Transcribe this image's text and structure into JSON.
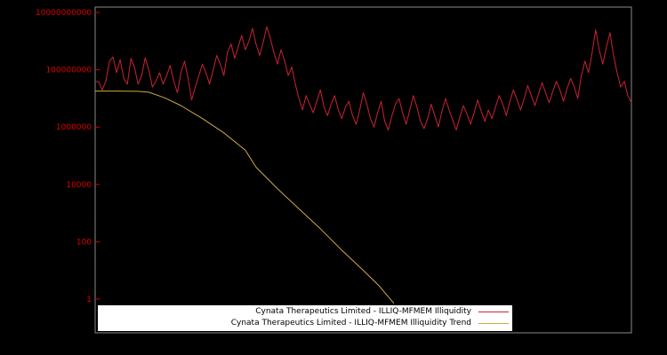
{
  "colors": {
    "background": "#000000",
    "plot_border": "#8a8a8a",
    "axis_label": "#dd0000",
    "legend_background": "#ffffff",
    "legend_text": "#000000"
  },
  "chart_data": {
    "type": "line",
    "title": "",
    "xlabel": "",
    "ylabel": "",
    "y_scale": "log",
    "grid": false,
    "legend_position": "bottom-center",
    "y_tick_labels": [
      "1",
      "100",
      "10000",
      "1000000",
      "100000000",
      "10000000000"
    ],
    "y_tick_values": [
      1,
      100,
      10000,
      1000000,
      100000000,
      10000000000
    ],
    "ylim_log10": [
      -1.18,
      10.19
    ],
    "series": [
      {
        "name": "Cynata Therapeutics Limited - ILLIQ-MFMEM Illiquidity",
        "color": "#cc2233",
        "log10_values": [
          7.6,
          7.58,
          7.3,
          7.62,
          8.3,
          8.45,
          7.9,
          8.35,
          7.7,
          7.5,
          8.4,
          8.1,
          7.5,
          7.8,
          8.42,
          8.0,
          7.4,
          7.6,
          7.9,
          7.5,
          7.8,
          8.15,
          7.6,
          7.2,
          7.9,
          8.3,
          7.7,
          6.95,
          7.4,
          7.8,
          8.2,
          7.9,
          7.5,
          8.0,
          8.5,
          8.2,
          7.8,
          8.6,
          8.9,
          8.4,
          8.8,
          9.2,
          8.7,
          9.0,
          9.45,
          8.9,
          8.5,
          8.95,
          9.5,
          9.1,
          8.6,
          8.2,
          8.7,
          8.3,
          7.8,
          8.1,
          7.5,
          7.0,
          6.6,
          7.1,
          6.8,
          6.5,
          6.9,
          7.3,
          6.7,
          6.4,
          6.8,
          7.1,
          6.6,
          6.3,
          6.7,
          6.9,
          6.4,
          6.1,
          6.6,
          7.2,
          6.8,
          6.3,
          6.0,
          6.5,
          6.9,
          6.2,
          5.9,
          6.4,
          6.8,
          7.0,
          6.5,
          6.1,
          6.6,
          7.1,
          6.7,
          6.2,
          5.95,
          6.3,
          6.8,
          6.4,
          6.0,
          6.55,
          7.0,
          6.6,
          6.25,
          5.9,
          6.35,
          6.75,
          6.45,
          6.1,
          6.5,
          6.95,
          6.55,
          6.2,
          6.6,
          6.3,
          6.7,
          7.1,
          6.8,
          6.4,
          6.9,
          7.3,
          6.95,
          6.6,
          7.0,
          7.45,
          7.1,
          6.75,
          7.15,
          7.55,
          7.2,
          6.85,
          7.25,
          7.6,
          7.3,
          6.9,
          7.35,
          7.7,
          7.4,
          7.0,
          7.8,
          8.3,
          7.9,
          8.6,
          9.4,
          8.7,
          8.2,
          8.8,
          9.3,
          8.5,
          7.9,
          7.4,
          7.6,
          7.1,
          6.85
        ]
      },
      {
        "name": "Cynata Therapeutics Limited - ILLIQ-MFMEM Illiquidity Trend",
        "color": "#ccaa44",
        "points_frac_log10": [
          [
            0.0,
            7.26
          ],
          [
            0.04,
            7.26
          ],
          [
            0.08,
            7.25
          ],
          [
            0.1,
            7.22
          ],
          [
            0.13,
            7.02
          ],
          [
            0.16,
            6.75
          ],
          [
            0.2,
            6.3
          ],
          [
            0.24,
            5.8
          ],
          [
            0.28,
            5.2
          ],
          [
            0.3,
            4.6
          ],
          [
            0.34,
            3.85
          ],
          [
            0.38,
            3.15
          ],
          [
            0.42,
            2.45
          ],
          [
            0.46,
            1.7
          ],
          [
            0.5,
            1.0
          ],
          [
            0.53,
            0.45
          ],
          [
            0.557,
            -0.15
          ]
        ]
      }
    ]
  }
}
